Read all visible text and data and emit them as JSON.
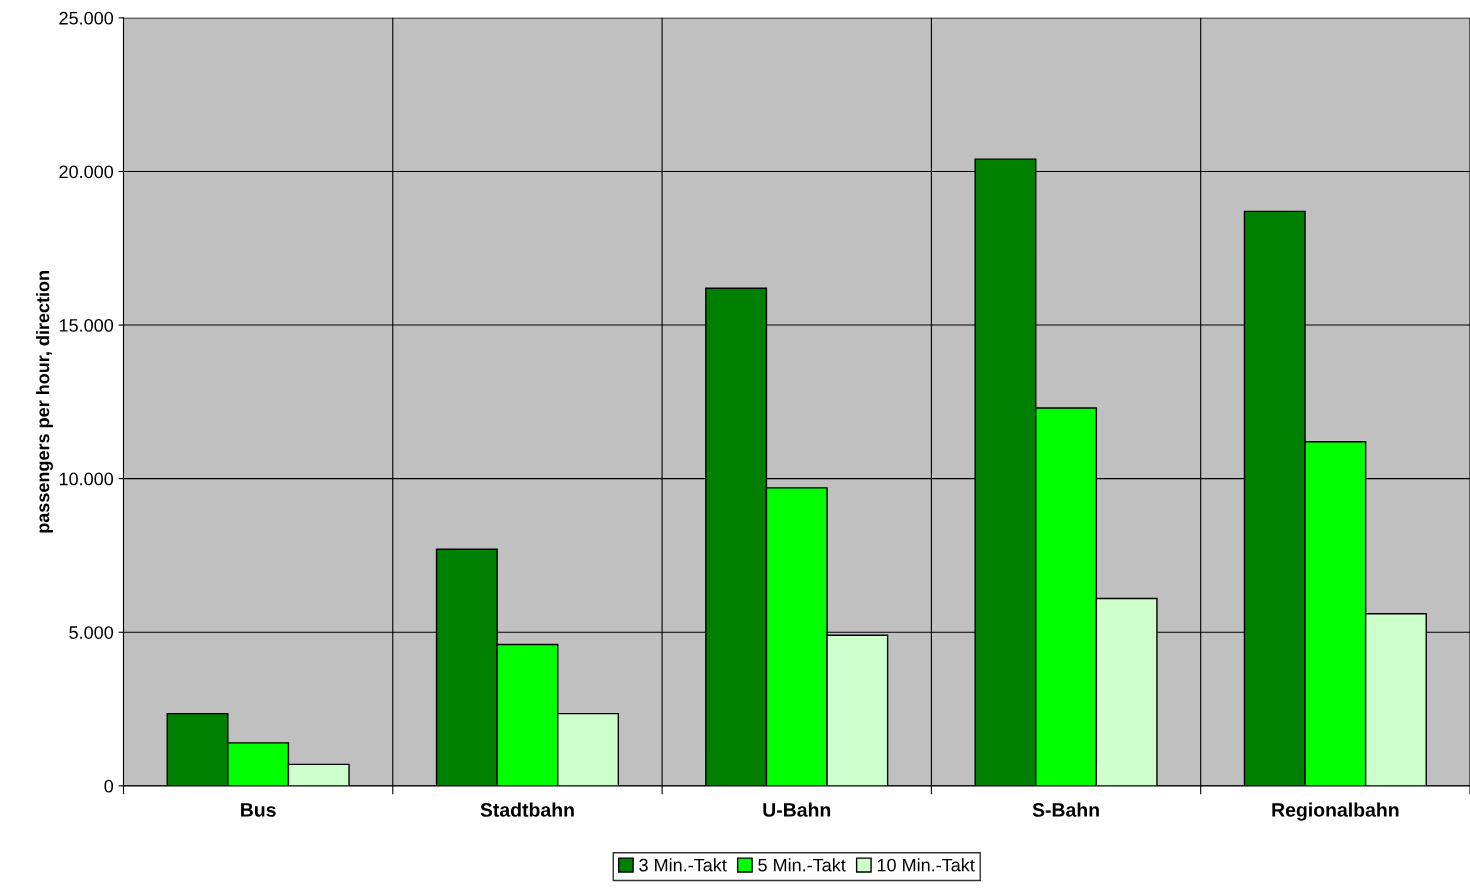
{
  "chart_data": {
    "type": "bar",
    "ylabel": "passengers per hour, direction",
    "categories": [
      "Bus",
      "Stadtbahn",
      "U-Bahn",
      "S-Bahn",
      "Regionalbahn"
    ],
    "series": [
      {
        "name": "3 Min.-Takt",
        "color": "#008000",
        "values": [
          2350,
          7700,
          16200,
          20400,
          18700
        ]
      },
      {
        "name": "5 Min.-Takt",
        "color": "#00ff00",
        "values": [
          1400,
          4600,
          9700,
          12300,
          11200
        ]
      },
      {
        "name": "10 Min.-Takt",
        "color": "#ccffcc",
        "values": [
          700,
          2350,
          4900,
          6100,
          5600
        ]
      }
    ],
    "ylim": [
      0,
      25000
    ],
    "yticks": [
      {
        "value": 0,
        "label": "0"
      },
      {
        "value": 5000,
        "label": "5.000"
      },
      {
        "value": 10000,
        "label": "10.000"
      },
      {
        "value": 15000,
        "label": "15.000"
      },
      {
        "value": 20000,
        "label": "20.000"
      },
      {
        "value": 25000,
        "label": "25.000"
      }
    ],
    "grid": true,
    "legend": "bottom"
  }
}
